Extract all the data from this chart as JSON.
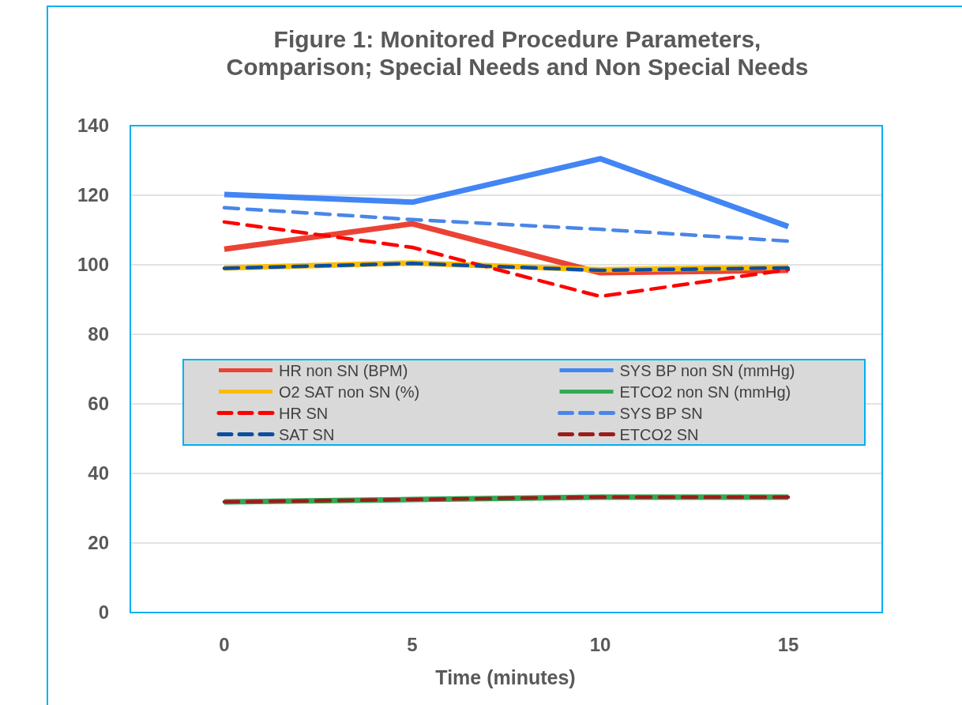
{
  "chart_data": {
    "type": "line",
    "title": "Figure 1: Monitored Procedure Parameters, Comparison; Special Needs and Non Special Needs",
    "xlabel": "Time (minutes)",
    "categories": [
      "0",
      "5",
      "10",
      "15"
    ],
    "ylim": [
      0,
      140
    ],
    "yticks": [
      0,
      20,
      40,
      60,
      80,
      100,
      120,
      140
    ],
    "grid": "y",
    "legend": "center",
    "marker": "none",
    "series": [
      {
        "name": "HR non SN (BPM)",
        "color": "#ea4335",
        "line_style": "solid",
        "values": [
          104.5,
          111.8,
          97.7,
          98.4
        ]
      },
      {
        "name": "SYS BP non SN (mmHg)",
        "color": "#4285f4",
        "line_style": "solid",
        "values": [
          120.2,
          118,
          130.5,
          111
        ]
      },
      {
        "name": "O2 SAT non SN (%)",
        "color": "#fbbc04",
        "line_style": "solid",
        "values": [
          99.1,
          100.5,
          98.6,
          99.3
        ]
      },
      {
        "name": "ETCO2 non SN (mmHg)",
        "color": "#34a853",
        "line_style": "solid",
        "values": [
          31.8,
          32.5,
          33.2,
          33.2
        ]
      },
      {
        "name": "HR SN",
        "color": "#ff0000",
        "line_style": "dashed",
        "values": [
          112.3,
          105,
          90.9,
          98.6
        ]
      },
      {
        "name": "SYS BP SN",
        "color": "#4a86e8",
        "line_style": "dashed",
        "values": [
          116.4,
          113,
          110.2,
          106.8
        ]
      },
      {
        "name": "SAT SN",
        "color": "#0b4ea2",
        "line_style": "dashed",
        "values": [
          99,
          100.4,
          98.4,
          99.1
        ]
      },
      {
        "name": "ETCO2 SN",
        "color": "#9c1c1c",
        "line_style": "dashed",
        "values": [
          31.8,
          32.5,
          33.2,
          33.2
        ]
      }
    ]
  }
}
